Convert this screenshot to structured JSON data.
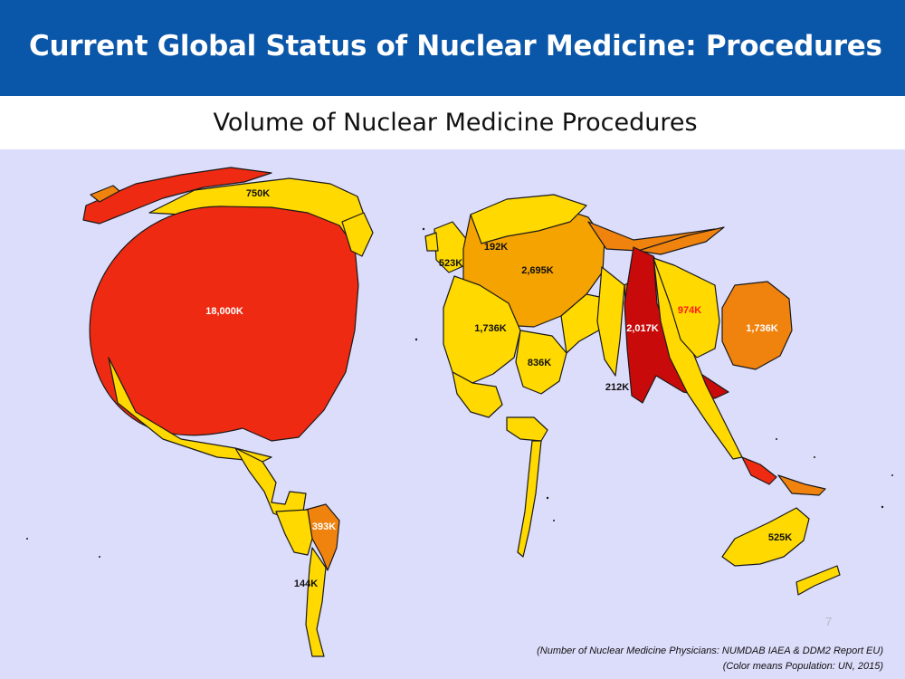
{
  "header": {
    "title": "Current Global Status of Nuclear Medicine: Procedures"
  },
  "subtitle": "Volume of Nuclear Medicine Procedures",
  "map": {
    "labels": {
      "north_america": "18,000K",
      "canada": "750K",
      "central_america": "393K",
      "south_america": "144K",
      "uk": "523K",
      "scandinavia": "192K",
      "central_europe": "2,695K",
      "west_europe": "1,736K",
      "italy": "836K",
      "middle_east": "212K",
      "china": "2,017K",
      "korea": "974K",
      "japan": "1,736K",
      "australia": "525K"
    },
    "colors": {
      "background": "#dcdcfb",
      "red": "#ee2a12",
      "dark_red": "#c80a0a",
      "orange": "#f0820e",
      "amber": "#f5a300",
      "yellow": "#ffd900",
      "label_highlight": "#ff1a1a"
    }
  },
  "page_number": "7",
  "footnotes": {
    "line1": "(Number of Nuclear Medicine Physicians: NUMDAB IAEA & DDM2 Report EU)",
    "line2": "(Color means Population: UN, 2015)"
  }
}
